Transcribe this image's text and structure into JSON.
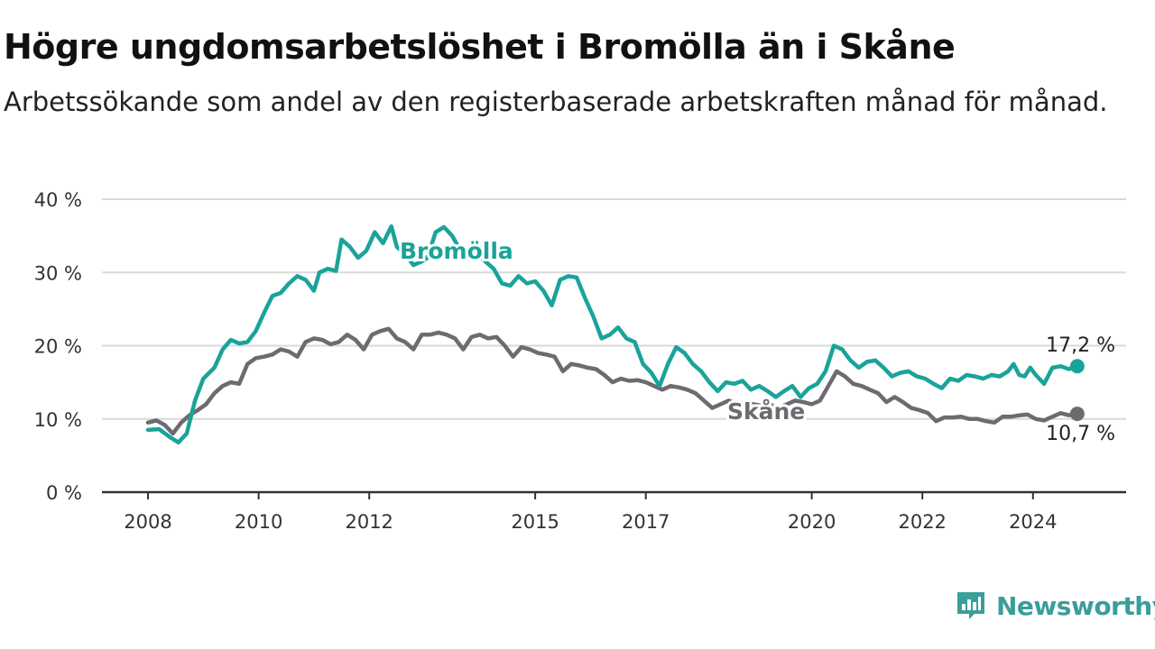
{
  "title": "Högre ungdomsarbetslöshet i Bromölla än i Skåne",
  "subtitle": "Arbetssökande som andel av den registerbaserade arbetskraften månad för månad.",
  "brand": {
    "name": "Newsworthy",
    "icon": "newsworthy-chart-icon"
  },
  "colors": {
    "bromolla": "#1aa39a",
    "skane": "#6d6a70",
    "grid": "#d9d9d9",
    "axis": "#333333"
  },
  "chart_data": {
    "type": "line",
    "title": "Högre ungdomsarbetslöshet i Bromölla än i Skåne",
    "ylim": [
      0,
      40
    ],
    "y_ticks": [
      0,
      10,
      20,
      30,
      40
    ],
    "y_tick_labels": [
      "0 %",
      "10 %",
      "20 %",
      "30 %",
      "40 %"
    ],
    "x_ticks": [
      2008,
      2010,
      2012,
      2015,
      2017,
      2020,
      2022,
      2024
    ],
    "x_tick_labels": [
      "2008",
      "2010",
      "2012",
      "2015",
      "2017",
      "2020",
      "2022",
      "2024"
    ],
    "xlim": [
      2008,
      2025
    ],
    "grid": true,
    "series": [
      {
        "name": "Bromölla",
        "end_label": "17,2 %",
        "points": [
          [
            2008.0,
            8.5
          ],
          [
            2008.2,
            8.6
          ],
          [
            2008.4,
            7.5
          ],
          [
            2008.55,
            6.8
          ],
          [
            2008.7,
            8.0
          ],
          [
            2008.85,
            12.5
          ],
          [
            2009.0,
            15.5
          ],
          [
            2009.2,
            17.0
          ],
          [
            2009.35,
            19.5
          ],
          [
            2009.5,
            20.8
          ],
          [
            2009.65,
            20.3
          ],
          [
            2009.8,
            20.5
          ],
          [
            2009.95,
            22.0
          ],
          [
            2010.1,
            24.5
          ],
          [
            2010.25,
            26.8
          ],
          [
            2010.4,
            27.2
          ],
          [
            2010.55,
            28.5
          ],
          [
            2010.7,
            29.5
          ],
          [
            2010.85,
            29.0
          ],
          [
            2011.0,
            27.5
          ],
          [
            2011.1,
            30.0
          ],
          [
            2011.25,
            30.5
          ],
          [
            2011.4,
            30.2
          ],
          [
            2011.5,
            34.5
          ],
          [
            2011.65,
            33.5
          ],
          [
            2011.8,
            32.0
          ],
          [
            2011.95,
            33.0
          ],
          [
            2012.1,
            35.5
          ],
          [
            2012.25,
            34.0
          ],
          [
            2012.4,
            36.3
          ],
          [
            2012.5,
            33.5
          ],
          [
            2012.65,
            32.5
          ],
          [
            2012.8,
            31.0
          ],
          [
            2012.95,
            31.5
          ],
          [
            2013.05,
            32.0
          ],
          [
            2013.2,
            35.5
          ],
          [
            2013.35,
            36.2
          ],
          [
            2013.5,
            35.0
          ],
          [
            2013.65,
            33.0
          ],
          [
            2013.8,
            32.0
          ],
          [
            2013.95,
            32.5
          ],
          [
            2014.1,
            31.5
          ],
          [
            2014.25,
            30.5
          ],
          [
            2014.4,
            28.5
          ],
          [
            2014.55,
            28.2
          ],
          [
            2014.7,
            29.5
          ],
          [
            2014.85,
            28.5
          ],
          [
            2015.0,
            28.8
          ],
          [
            2015.15,
            27.5
          ],
          [
            2015.3,
            25.5
          ],
          [
            2015.45,
            29.0
          ],
          [
            2015.6,
            29.5
          ],
          [
            2015.75,
            29.3
          ],
          [
            2015.9,
            26.5
          ],
          [
            2016.05,
            24.0
          ],
          [
            2016.2,
            21.0
          ],
          [
            2016.35,
            21.5
          ],
          [
            2016.5,
            22.5
          ],
          [
            2016.65,
            21.0
          ],
          [
            2016.8,
            20.5
          ],
          [
            2016.95,
            17.5
          ],
          [
            2017.1,
            16.3
          ],
          [
            2017.25,
            14.5
          ],
          [
            2017.4,
            17.5
          ],
          [
            2017.55,
            19.8
          ],
          [
            2017.7,
            19.0
          ],
          [
            2017.85,
            17.5
          ],
          [
            2018.0,
            16.5
          ],
          [
            2018.15,
            15.0
          ],
          [
            2018.3,
            13.8
          ],
          [
            2018.45,
            15.0
          ],
          [
            2018.6,
            14.8
          ],
          [
            2018.75,
            15.2
          ],
          [
            2018.9,
            14.0
          ],
          [
            2019.05,
            14.5
          ],
          [
            2019.2,
            13.8
          ],
          [
            2019.35,
            13.0
          ],
          [
            2019.5,
            13.8
          ],
          [
            2019.65,
            14.5
          ],
          [
            2019.8,
            13.0
          ],
          [
            2019.95,
            14.2
          ],
          [
            2020.1,
            14.8
          ],
          [
            2020.25,
            16.5
          ],
          [
            2020.4,
            20.0
          ],
          [
            2020.55,
            19.5
          ],
          [
            2020.7,
            18.0
          ],
          [
            2020.85,
            17.0
          ],
          [
            2021.0,
            17.8
          ],
          [
            2021.15,
            18.0
          ],
          [
            2021.3,
            17.0
          ],
          [
            2021.45,
            15.8
          ],
          [
            2021.6,
            16.3
          ],
          [
            2021.75,
            16.5
          ],
          [
            2021.9,
            15.8
          ],
          [
            2022.05,
            15.5
          ],
          [
            2022.2,
            14.8
          ],
          [
            2022.35,
            14.2
          ],
          [
            2022.5,
            15.5
          ],
          [
            2022.65,
            15.2
          ],
          [
            2022.8,
            16.0
          ],
          [
            2022.95,
            15.8
          ],
          [
            2023.1,
            15.5
          ],
          [
            2023.25,
            16.0
          ],
          [
            2023.4,
            15.8
          ],
          [
            2023.55,
            16.5
          ],
          [
            2023.65,
            17.5
          ],
          [
            2023.75,
            16.0
          ],
          [
            2023.85,
            15.8
          ],
          [
            2023.95,
            17.0
          ],
          [
            2024.05,
            16.0
          ],
          [
            2024.2,
            14.8
          ],
          [
            2024.35,
            17.0
          ],
          [
            2024.5,
            17.2
          ],
          [
            2024.65,
            16.8
          ],
          [
            2024.8,
            17.2
          ]
        ]
      },
      {
        "name": "Skåne",
        "end_label": "10,7 %",
        "points": [
          [
            2008.0,
            9.5
          ],
          [
            2008.15,
            9.8
          ],
          [
            2008.3,
            9.2
          ],
          [
            2008.45,
            8.0
          ],
          [
            2008.6,
            9.5
          ],
          [
            2008.75,
            10.5
          ],
          [
            2008.9,
            11.2
          ],
          [
            2009.05,
            12.0
          ],
          [
            2009.2,
            13.5
          ],
          [
            2009.35,
            14.5
          ],
          [
            2009.5,
            15.0
          ],
          [
            2009.65,
            14.8
          ],
          [
            2009.8,
            17.5
          ],
          [
            2009.95,
            18.3
          ],
          [
            2010.1,
            18.5
          ],
          [
            2010.25,
            18.8
          ],
          [
            2010.4,
            19.5
          ],
          [
            2010.55,
            19.2
          ],
          [
            2010.7,
            18.5
          ],
          [
            2010.85,
            20.5
          ],
          [
            2011.0,
            21.0
          ],
          [
            2011.15,
            20.8
          ],
          [
            2011.3,
            20.2
          ],
          [
            2011.45,
            20.5
          ],
          [
            2011.6,
            21.5
          ],
          [
            2011.75,
            20.8
          ],
          [
            2011.9,
            19.5
          ],
          [
            2012.05,
            21.5
          ],
          [
            2012.2,
            22.0
          ],
          [
            2012.35,
            22.3
          ],
          [
            2012.5,
            21.0
          ],
          [
            2012.65,
            20.5
          ],
          [
            2012.8,
            19.5
          ],
          [
            2012.95,
            21.5
          ],
          [
            2013.1,
            21.5
          ],
          [
            2013.25,
            21.8
          ],
          [
            2013.4,
            21.5
          ],
          [
            2013.55,
            21.0
          ],
          [
            2013.7,
            19.5
          ],
          [
            2013.85,
            21.2
          ],
          [
            2014.0,
            21.5
          ],
          [
            2014.15,
            21.0
          ],
          [
            2014.3,
            21.2
          ],
          [
            2014.45,
            20.0
          ],
          [
            2014.6,
            18.5
          ],
          [
            2014.75,
            19.8
          ],
          [
            2014.9,
            19.5
          ],
          [
            2015.05,
            19.0
          ],
          [
            2015.2,
            18.8
          ],
          [
            2015.35,
            18.5
          ],
          [
            2015.5,
            16.5
          ],
          [
            2015.65,
            17.5
          ],
          [
            2015.8,
            17.3
          ],
          [
            2015.95,
            17.0
          ],
          [
            2016.1,
            16.8
          ],
          [
            2016.25,
            16.0
          ],
          [
            2016.4,
            15.0
          ],
          [
            2016.55,
            15.5
          ],
          [
            2016.7,
            15.2
          ],
          [
            2016.85,
            15.3
          ],
          [
            2017.0,
            15.0
          ],
          [
            2017.15,
            14.5
          ],
          [
            2017.3,
            14.0
          ],
          [
            2017.45,
            14.5
          ],
          [
            2017.6,
            14.3
          ],
          [
            2017.75,
            14.0
          ],
          [
            2017.9,
            13.5
          ],
          [
            2018.05,
            12.5
          ],
          [
            2018.2,
            11.5
          ],
          [
            2018.35,
            12.0
          ],
          [
            2018.5,
            12.5
          ],
          [
            2018.65,
            12.0
          ],
          [
            2018.8,
            12.3
          ],
          [
            2018.95,
            12.0
          ],
          [
            2019.1,
            11.8
          ],
          [
            2019.25,
            12.0
          ],
          [
            2019.4,
            11.5
          ],
          [
            2019.55,
            12.0
          ],
          [
            2019.7,
            12.5
          ],
          [
            2019.85,
            12.3
          ],
          [
            2020.0,
            12.0
          ],
          [
            2020.15,
            12.5
          ],
          [
            2020.3,
            14.5
          ],
          [
            2020.45,
            16.5
          ],
          [
            2020.6,
            15.8
          ],
          [
            2020.75,
            14.8
          ],
          [
            2020.9,
            14.5
          ],
          [
            2021.05,
            14.0
          ],
          [
            2021.2,
            13.5
          ],
          [
            2021.35,
            12.3
          ],
          [
            2021.5,
            13.0
          ],
          [
            2021.65,
            12.3
          ],
          [
            2021.8,
            11.5
          ],
          [
            2021.95,
            11.2
          ],
          [
            2022.1,
            10.8
          ],
          [
            2022.25,
            9.7
          ],
          [
            2022.4,
            10.2
          ],
          [
            2022.55,
            10.2
          ],
          [
            2022.7,
            10.3
          ],
          [
            2022.85,
            10.0
          ],
          [
            2023.0,
            10.0
          ],
          [
            2023.15,
            9.7
          ],
          [
            2023.3,
            9.5
          ],
          [
            2023.45,
            10.3
          ],
          [
            2023.6,
            10.3
          ],
          [
            2023.75,
            10.5
          ],
          [
            2023.9,
            10.6
          ],
          [
            2024.05,
            10.0
          ],
          [
            2024.2,
            9.8
          ],
          [
            2024.35,
            10.3
          ],
          [
            2024.5,
            10.8
          ],
          [
            2024.65,
            10.5
          ],
          [
            2024.8,
            10.7
          ]
        ]
      }
    ]
  }
}
